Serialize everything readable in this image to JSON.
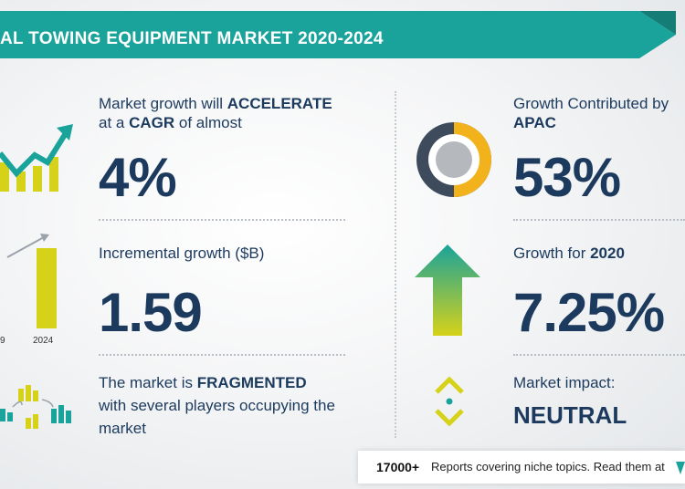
{
  "header": {
    "title": "AL TOWING EQUIPMENT MARKET 2020-2024"
  },
  "left": {
    "growth": {
      "line1_pre": "Market growth will ",
      "line1_bold": "ACCELERATE",
      "line2_pre": "at a ",
      "line2_bold": "CAGR",
      "line2_post": " of almost",
      "value": "4%"
    },
    "incremental": {
      "label": "Incremental growth ($B)",
      "value": "1.59",
      "axis_start": "9",
      "axis_end": "2024"
    },
    "fragmented": {
      "line1_pre": "The market is ",
      "line1_bold": "FRAGMENTED",
      "line2": "with several players occupying the",
      "line3": "market"
    }
  },
  "right": {
    "contribution": {
      "label": "Growth Contributed by",
      "region": "APAC",
      "value": "53%"
    },
    "growth2020": {
      "label_pre": "Growth for ",
      "label_bold": "2020",
      "value": "7.25%"
    },
    "impact": {
      "label": "Market impact:",
      "value": "NEUTRAL"
    }
  },
  "footer": {
    "count": "17000+",
    "text": "Reports covering niche topics. Read them at"
  },
  "colors": {
    "teal": "#1aa39a",
    "navy": "#1c3a5e",
    "yellow": "#d6d21a",
    "gold": "#f2b21c",
    "slate": "#3d4b5c"
  }
}
